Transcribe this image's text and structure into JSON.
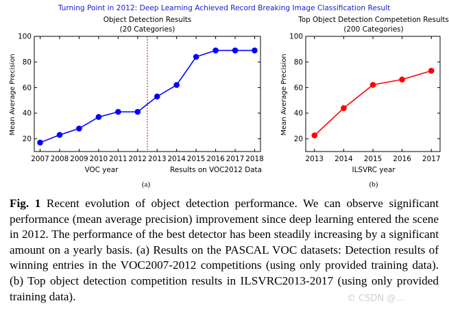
{
  "figure": {
    "suptitle": "Turning Point in 2012: Deep Learning Achieved Record Breaking Image Classification Result",
    "label": "Fig. 1",
    "caption": "Recent evolution of object detection performance. We can observe significant performance (mean average precision) improvement since deep learning entered the scene in 2012. The performance of the best detector has been steadily increasing by a significant amount on a yearly basis. (a) Results on the PASCAL VOC datasets: Detection results of winning entries in the VOC2007-2012 competitions (using only provided training data). (b) Top object detection competition results in ILSVRC2013-2017 (using only provided training data).",
    "watermark": "© CSDN @..."
  },
  "colors": {
    "suptitle": "#1a1acc",
    "series_a": "#0000ff",
    "series_b": "#ff0000",
    "divider": "#cc0000"
  },
  "chart_data": [
    {
      "type": "line",
      "panel_label": "(a)",
      "title": "Object Detection Results",
      "subtitle": "(20 Categories)",
      "xlabel": "VOC year",
      "xlabel_right": "Results on VOC2012 Data",
      "ylabel": "Mean Average Precision",
      "x": [
        2007,
        2008,
        2009,
        2010,
        2011,
        2012,
        2013,
        2014,
        2015,
        2016,
        2017,
        2018
      ],
      "series": [
        {
          "values": [
            17,
            23,
            28,
            37,
            41,
            41,
            53,
            62,
            84,
            89,
            89,
            89
          ]
        }
      ],
      "xlim": [
        2006.7,
        2018.3
      ],
      "ylim": [
        10,
        100
      ],
      "yticks": [
        20,
        40,
        60,
        80,
        100
      ],
      "vline_x": 2012.5,
      "grid": false
    },
    {
      "type": "line",
      "panel_label": "(b)",
      "title": "Top Object Detection Competetion Results",
      "subtitle": "(200 Categories)",
      "xlabel": "ILSVRC year",
      "ylabel": "Mean Average Precision",
      "x": [
        2013,
        2014,
        2015,
        2016,
        2017
      ],
      "series": [
        {
          "values": [
            22.6,
            43.9,
            62.1,
            66.3,
            73.1
          ]
        }
      ],
      "xlim": [
        2012.7,
        2017.3
      ],
      "ylim": [
        10,
        100
      ],
      "yticks": [
        20,
        40,
        60,
        80,
        100
      ],
      "grid": false
    }
  ]
}
